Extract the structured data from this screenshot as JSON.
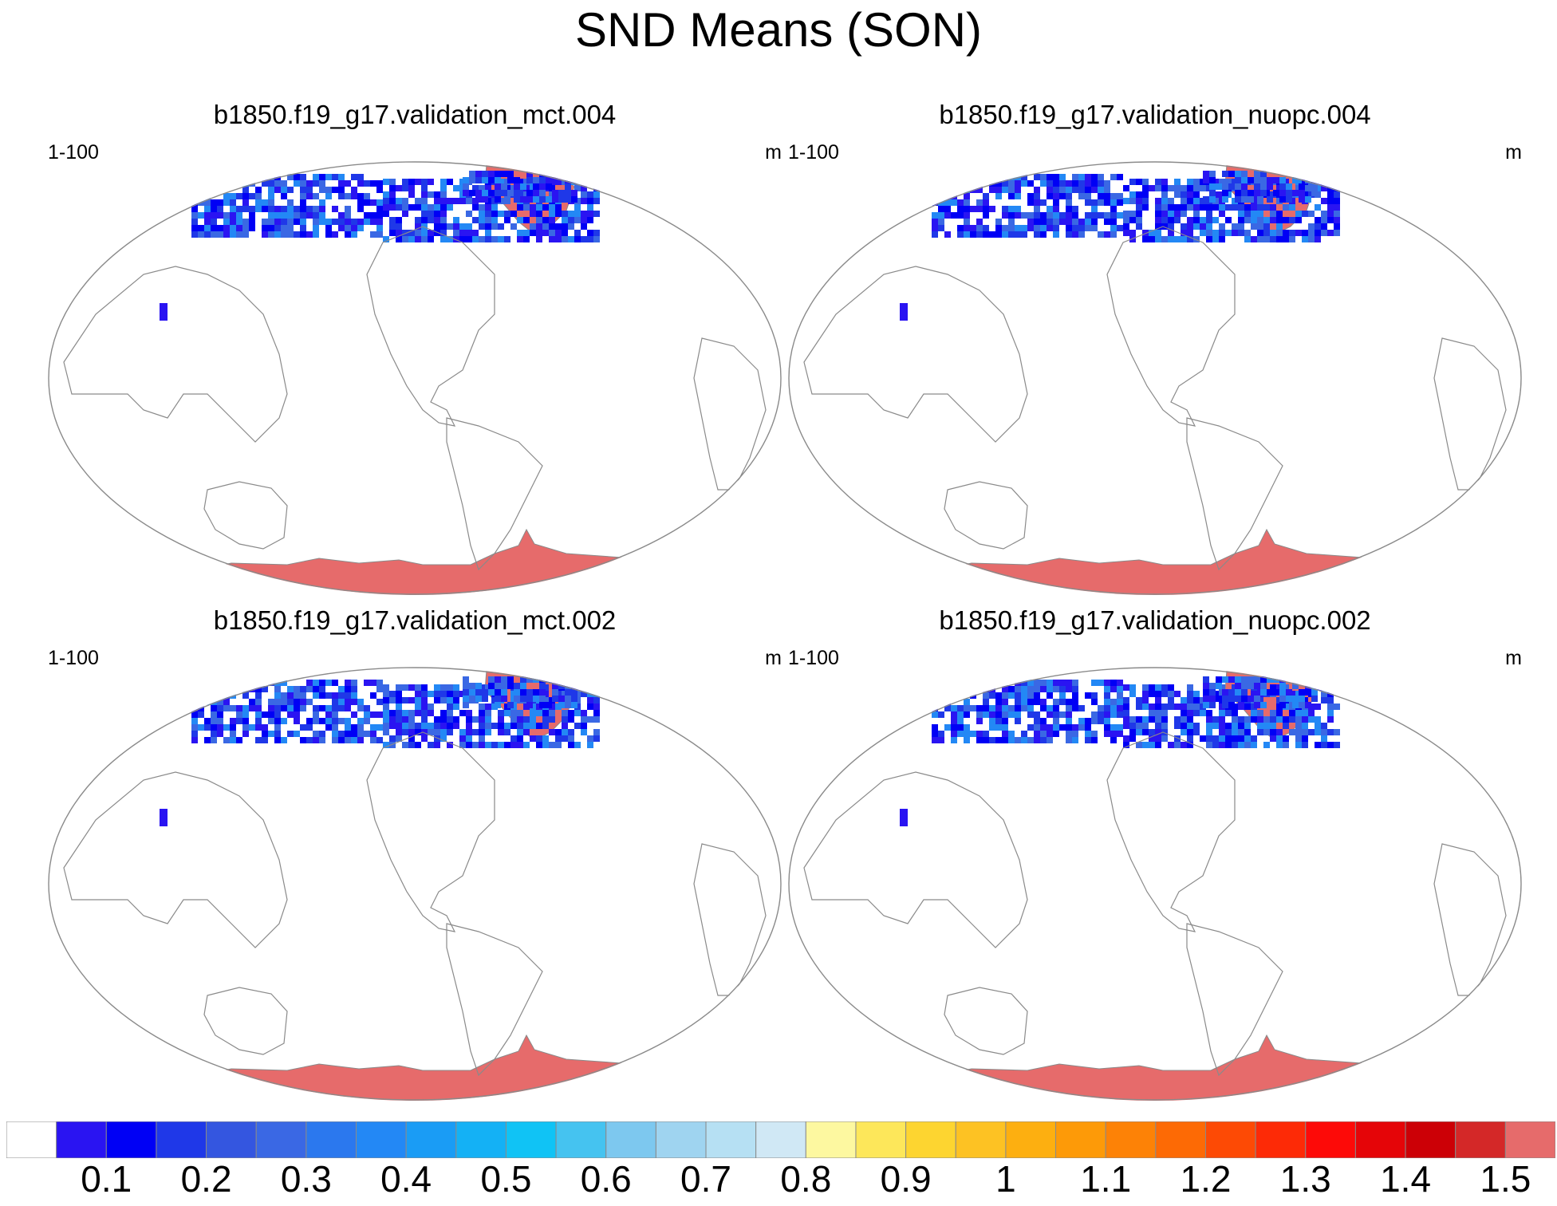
{
  "title": "SND Means (SON)",
  "panels": [
    {
      "title": "b1850.f19_g17.validation_mct.004",
      "left_label": "1-100",
      "right_label": "m"
    },
    {
      "title": "b1850.f19_g17.validation_nuopc.004",
      "left_label": "1-100",
      "right_label": "m"
    },
    {
      "title": "b1850.f19_g17.validation_mct.002",
      "left_label": "1-100",
      "right_label": "m"
    },
    {
      "title": "b1850.f19_g17.validation_nuopc.002",
      "left_label": "1-100",
      "right_label": "m"
    }
  ],
  "colorbar": {
    "colors": [
      "#ffffff",
      "#2a14f2",
      "#0000f5",
      "#1f38e8",
      "#3456e0",
      "#3a68e4",
      "#2b78ee",
      "#2388f5",
      "#1a9cf5",
      "#14b1f5",
      "#10c3f5",
      "#45c3f0",
      "#7dc8ef",
      "#9fd4f0",
      "#b6e0f3",
      "#d0e8f5",
      "#fdf8a0",
      "#fde75a",
      "#fdd530",
      "#fdc223",
      "#fdaf10",
      "#fd9a08",
      "#fd8206",
      "#fd6a05",
      "#fd4a05",
      "#fd2a06",
      "#fd0a08",
      "#e50508",
      "#cc0006",
      "#d42828",
      "#e66b6b"
    ],
    "labels": [
      "0.1",
      "0.2",
      "0.3",
      "0.4",
      "0.5",
      "0.6",
      "0.7",
      "0.8",
      "0.9",
      "1",
      "1.1",
      "1.2",
      "1.3",
      "1.4",
      "1.5"
    ],
    "antarctic_color": "#e66b6b"
  }
}
